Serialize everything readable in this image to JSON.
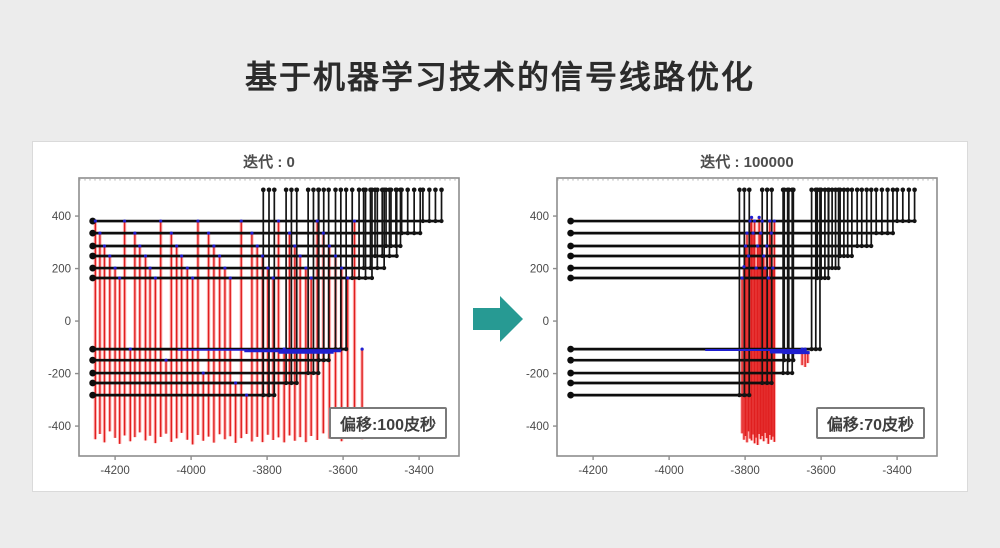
{
  "page": {
    "title": "基于机器学习技术的信号线路优化",
    "background": "#ececec",
    "card_background": "#ffffff"
  },
  "arrow": {
    "color": "#279a93"
  },
  "colors": {
    "trace": "#0d0d0d",
    "stub": "#141414",
    "red_core": "#e01f1f",
    "red_glow": "rgba(255,95,95,0.45)",
    "blue": "#1f1fd0",
    "border": "#8d8d8d",
    "tick_label": "#4a4a4a",
    "dotted": "#c4c4c4"
  },
  "chart_data": [
    {
      "type": "line",
      "title": "迭代 : 0",
      "offset_label": "偏移:100皮秒",
      "xlim": [
        -4295,
        -3295
      ],
      "ylim": [
        -514,
        545
      ],
      "xticks": [
        -4200,
        -4000,
        -3800,
        -3600,
        -3400
      ],
      "yticks": [
        400,
        200,
        0,
        -200,
        -400
      ],
      "top_y": 500,
      "dotted_line_y": 538,
      "trace_left_x": -4259,
      "traces": [
        {
          "y": 381,
          "end": -3341,
          "stubs": [
            -3390,
            -3373,
            -3357,
            -3341
          ]
        },
        {
          "y": 335,
          "end": -3397,
          "stubs": [
            -3446,
            -3430,
            -3413,
            -3397
          ]
        },
        {
          "y": 286,
          "end": -3449,
          "stubs": [
            -3487,
            -3474,
            -3461,
            -3449
          ]
        },
        {
          "y": 248,
          "end": -3459,
          "stubs": [
            -3516,
            -3497,
            -3478,
            -3459
          ]
        },
        {
          "y": 202,
          "end": -3492,
          "stubs": [
            -3546,
            -3528,
            -3510,
            -3492
          ]
        },
        {
          "y": 164,
          "end": -3524,
          "stubs": [
            -3576,
            -3558,
            -3541,
            -3524
          ]
        },
        {
          "y": -107,
          "end": -3592,
          "stubs": [
            -3620,
            -3606,
            -3592
          ]
        },
        {
          "y": -149,
          "end": -3638,
          "stubs": [
            -3664,
            -3651,
            -3638
          ]
        },
        {
          "y": -198,
          "end": -3665,
          "stubs": [
            -3692,
            -3678,
            -3665
          ]
        },
        {
          "y": -236,
          "end": -3722,
          "stubs": [
            -3750,
            -3736,
            -3722
          ]
        },
        {
          "y": -282,
          "end": -3781,
          "stubs": [
            -3810,
            -3795,
            -3781
          ]
        }
      ],
      "red_drops": [
        [
          -4252,
          381,
          -450
        ],
        [
          -4240,
          335,
          -430
        ],
        [
          -4228,
          286,
          -462
        ],
        [
          -4214,
          248,
          -420
        ],
        [
          -4200,
          202,
          -445
        ],
        [
          -4188,
          164,
          -468
        ],
        [
          -4175,
          381,
          -436
        ],
        [
          -4160,
          -107,
          -458
        ],
        [
          -4148,
          335,
          -442
        ],
        [
          -4135,
          286,
          -424
        ],
        [
          -4120,
          248,
          -455
        ],
        [
          -4108,
          202,
          -437
        ],
        [
          -4094,
          164,
          -465
        ],
        [
          -4080,
          381,
          -441
        ],
        [
          -4066,
          -149,
          -429
        ],
        [
          -4052,
          335,
          -460
        ],
        [
          -4038,
          286,
          -447
        ],
        [
          -4025,
          248,
          -426
        ],
        [
          -4010,
          202,
          -452
        ],
        [
          -3996,
          164,
          -470
        ],
        [
          -3982,
          381,
          -434
        ],
        [
          -3968,
          -198,
          -456
        ],
        [
          -3954,
          335,
          -440
        ],
        [
          -3940,
          286,
          -463
        ],
        [
          -3925,
          248,
          -431
        ],
        [
          -3911,
          202,
          -450
        ],
        [
          -3897,
          164,
          -439
        ],
        [
          -3883,
          -236,
          -464
        ],
        [
          -3868,
          381,
          -446
        ],
        [
          -3854,
          -282,
          -430
        ],
        [
          -3840,
          335,
          -459
        ],
        [
          -3826,
          286,
          -441
        ],
        [
          -3812,
          248,
          -461
        ],
        [
          -3798,
          202,
          -433
        ],
        [
          -3784,
          164,
          -453
        ],
        [
          -3770,
          381,
          -443
        ],
        [
          -3755,
          -107,
          -462
        ],
        [
          -3741,
          335,
          -436
        ],
        [
          -3727,
          286,
          -456
        ],
        [
          -3713,
          248,
          -442
        ],
        [
          -3698,
          202,
          -461
        ],
        [
          -3684,
          164,
          -438
        ],
        [
          -3668,
          381,
          -453
        ],
        [
          -3652,
          335,
          -428
        ],
        [
          -3636,
          286,
          -448
        ],
        [
          -3620,
          248,
          -436
        ],
        [
          -3604,
          202,
          -458
        ],
        [
          -3588,
          164,
          -444
        ],
        [
          -3570,
          381,
          -430
        ],
        [
          -3550,
          -107,
          -450
        ]
      ],
      "blue_segments": [
        [
          -110,
          -4035,
          -3850,
          1.6
        ],
        [
          -113,
          -3860,
          -3605,
          3
        ],
        [
          -116,
          -3770,
          -3625,
          4.5
        ]
      ]
    },
    {
      "type": "line",
      "title": "迭代 : 100000",
      "offset_label": "偏移:70皮秒",
      "xlim": [
        -4295,
        -3295
      ],
      "ylim": [
        -514,
        545
      ],
      "xticks": [
        -4200,
        -4000,
        -3800,
        -3600,
        -3400
      ],
      "yticks": [
        400,
        200,
        0,
        -200,
        -400
      ],
      "top_y": 500,
      "dotted_line_y": 538,
      "trace_left_x": -4259,
      "traces": [
        {
          "y": 381,
          "end": -3354,
          "stubs": [
            -3400,
            -3385,
            -3369,
            -3354
          ]
        },
        {
          "y": 335,
          "end": -3411,
          "stubs": [
            -3455,
            -3440,
            -3425,
            -3411
          ]
        },
        {
          "y": 286,
          "end": -3468,
          "stubs": [
            -3505,
            -3493,
            -3480,
            -3468
          ]
        },
        {
          "y": 248,
          "end": -3519,
          "stubs": [
            -3550,
            -3540,
            -3530,
            -3519
          ]
        },
        {
          "y": 202,
          "end": -3554,
          "stubs": [
            -3580,
            -3571,
            -3562,
            -3554
          ]
        },
        {
          "y": 164,
          "end": -3581,
          "stubs": [
            -3610,
            -3600,
            -3590,
            -3581
          ]
        },
        {
          "y": -107,
          "end": -3603,
          "stubs": [
            -3625,
            -3614,
            -3603
          ]
        },
        {
          "y": -149,
          "end": -3673,
          "stubs": [
            -3697,
            -3685,
            -3673
          ]
        },
        {
          "y": -198,
          "end": -3676,
          "stubs": [
            -3700,
            -3688,
            -3676
          ]
        },
        {
          "y": -236,
          "end": -3730,
          "stubs": [
            -3755,
            -3742,
            -3730
          ]
        },
        {
          "y": -282,
          "end": -3789,
          "stubs": [
            -3815,
            -3802,
            -3789
          ]
        }
      ],
      "red_drops": [
        [
          -3808,
          164,
          -428
        ],
        [
          -3803,
          207,
          -452
        ],
        [
          -3799,
          286,
          -438
        ],
        [
          -3795,
          335,
          -462
        ],
        [
          -3791,
          248,
          -420
        ],
        [
          -3787,
          381,
          -448
        ],
        [
          -3783,
          395,
          -455
        ],
        [
          -3779,
          335,
          -432
        ],
        [
          -3775,
          381,
          -466
        ],
        [
          -3771,
          202,
          -444
        ],
        [
          -3767,
          286,
          -472
        ],
        [
          -3763,
          395,
          -430
        ],
        [
          -3759,
          335,
          -450
        ],
        [
          -3755,
          381,
          -438
        ],
        [
          -3751,
          248,
          -458
        ],
        [
          -3747,
          202,
          -426
        ],
        [
          -3743,
          286,
          -446
        ],
        [
          -3739,
          164,
          -468
        ],
        [
          -3735,
          381,
          -434
        ],
        [
          -3731,
          335,
          -452
        ],
        [
          -3727,
          202,
          -440
        ],
        [
          -3723,
          381,
          -460
        ],
        [
          -3650,
          -107,
          -168
        ],
        [
          -3642,
          -107,
          -175
        ],
        [
          -3635,
          -120,
          -160
        ]
      ],
      "blue_segments": [
        [
          -110,
          -3905,
          -3645,
          2
        ],
        [
          -115,
          -3735,
          -3638,
          4.5
        ],
        [
          -120,
          -3700,
          -3630,
          3
        ]
      ]
    }
  ]
}
